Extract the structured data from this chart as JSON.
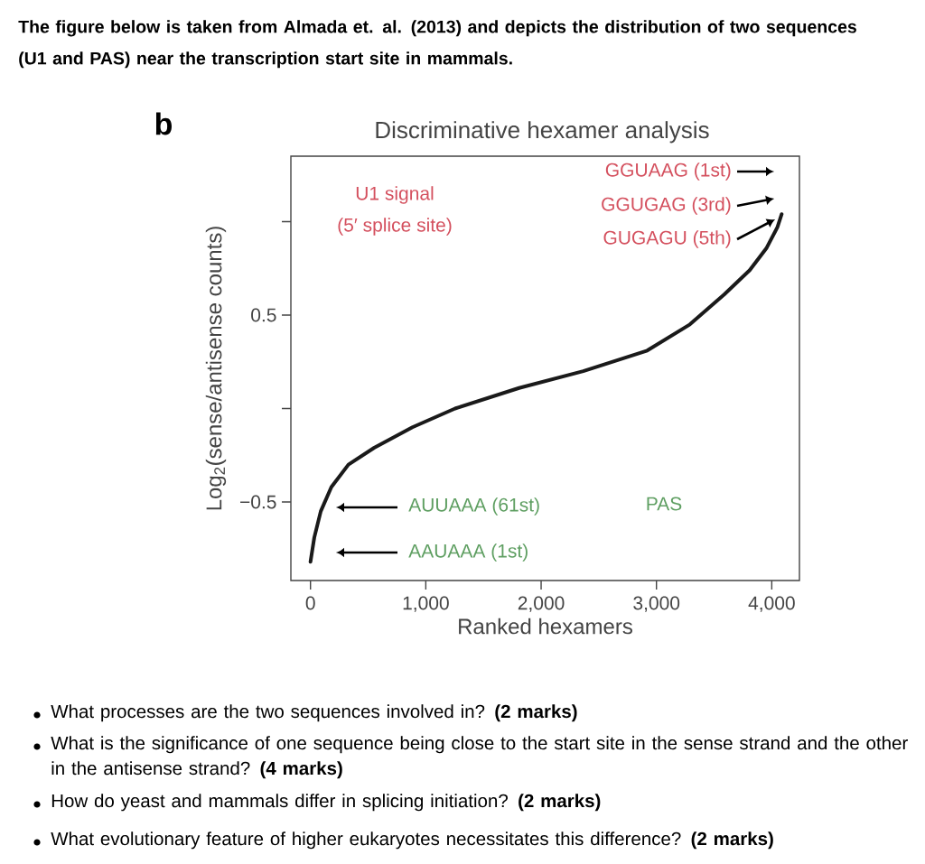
{
  "chart_data": {
    "type": "line",
    "title": "The figure below is taken from Almada et. al. (2013) and depicts the distribution of two sequences (U1 and PAS) near the transcription start site in mammals.",
    "subtitle": "Discriminative hexamer analysis",
    "xlabel": "Ranked hexamers",
    "ylabel": "Log$_{2}$(sense/antisense counts)",
    "xlim": [
      -170,
      4240
    ],
    "ylim": [
      -0.92,
      1.35
    ],
    "xticks": [
      0,
      {
        "value": 1000,
        "label": "1,000"
      },
      {
        "value": 2000,
        "label": "2,000"
      },
      {
        "value": 3000,
        "label": "3,000"
      },
      {
        "value": 4000,
        "label": "4,000"
      }
    ],
    "yticks": [
      {
        "value": -0.5,
        "label": "−0.5"
      },
      {
        "value": 0,
        "label": null
      },
      0.5,
      {
        "value": 1,
        "label": null
      }
    ],
    "series": [
      {
        "color": "#1a1a1a",
        "x": [
          0,
          33,
          89,
          181,
          329,
          552,
          884,
          1254,
          1809,
          2365,
          2920,
          3290,
          3587,
          3809,
          3956,
          4049,
          4086
        ],
        "values": [
          -0.82,
          -0.69,
          -0.55,
          -0.42,
          -0.3,
          -0.21,
          -0.1,
          0.0,
          0.11,
          0.2,
          0.31,
          0.45,
          0.61,
          0.74,
          0.86,
          0.97,
          1.04
        ]
      }
    ],
    "annotations": [
      "b",
      "U1 signal",
      "(5′ splice site)",
      "GGUAAG (1st)",
      "GGUGAG (3rd)",
      "GUGAGU (5th)",
      "AUUAAA (61st)",
      "AAUAAA (1st)",
      "PAS",
      "What processes are the two sequences involved in? **(2 marks)**",
      "What is the significance of one sequence being close to the start site in the sense strand and the other in the antisense strand? **(4 marks)**",
      "How do yeast and mammals differ in splicing initiation? **(2 marks)**",
      "What evolutionary feature of higher eukaryotes necessitates this difference? **(2 marks)**"
    ]
  }
}
